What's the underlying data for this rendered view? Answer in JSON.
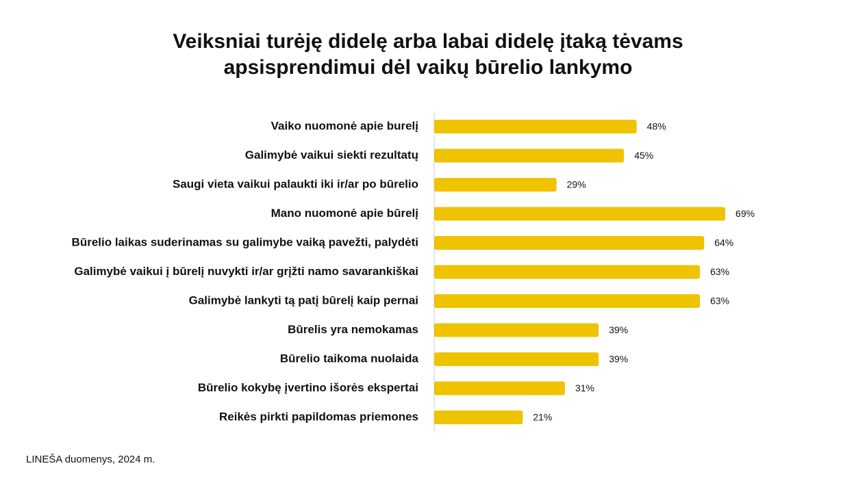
{
  "chart_data": {
    "type": "bar",
    "title": [
      "Veiksniai turėję didelę arba labai didelę įtaką tėvams",
      "apsisprendimui dėl vaikų būrelio lankymo"
    ],
    "categories": [
      "Vaiko nuomonė apie burelį",
      "Galimybė vaikui siekti rezultatų",
      "Saugi vieta vaikui palaukti iki ir/ar po būrelio",
      "Mano nuomonė apie būrelį",
      "Būrelio laikas suderinamas su galimybe vaiką pavežti, palydėti",
      "Galimybė vaikui į būrelį nuvykti ir/ar grįžti namo savarankiškai",
      "Galimybė lankyti tą patį būrelį kaip pernai",
      "Būrelis yra nemokamas",
      "Būrelio taikoma nuolaida",
      "Būrelio kokybę įvertino išorės ekspertai",
      "Reikės pirkti papildomas priemones"
    ],
    "values": [
      48,
      45,
      29,
      69,
      64,
      63,
      63,
      39,
      39,
      31,
      21
    ],
    "value_labels": [
      "48%",
      "45%",
      "29%",
      "69%",
      "64%",
      "63%",
      "63%",
      "39%",
      "39%",
      "31%",
      "21%"
    ],
    "color": "#efc300",
    "source": "LINEŠA duomenys, 2024 m."
  }
}
